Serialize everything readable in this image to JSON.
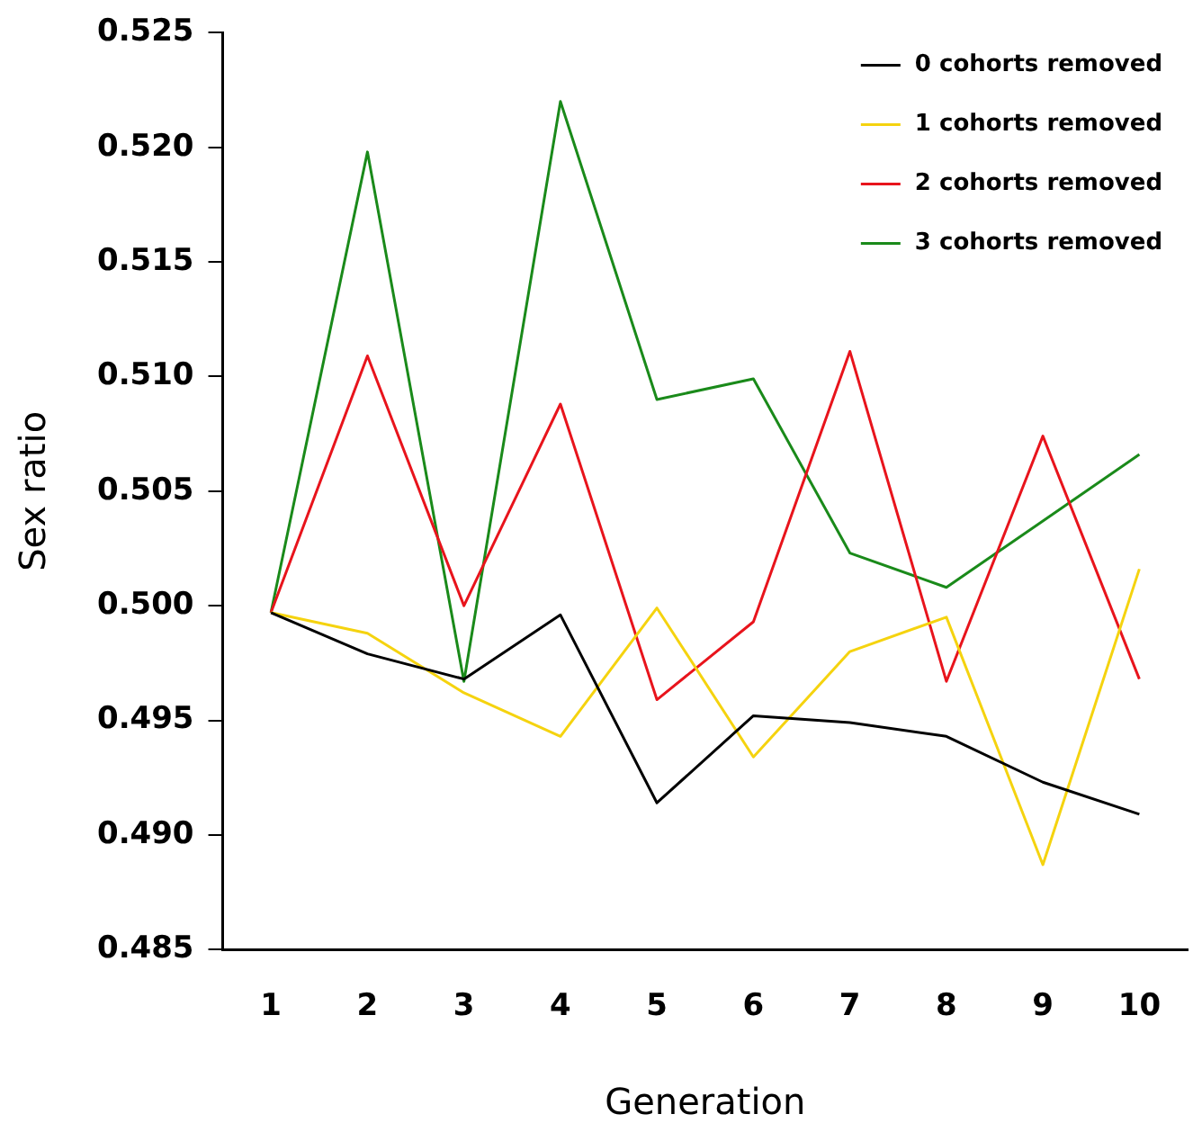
{
  "chart_data": {
    "type": "line",
    "xlabel": "Generation",
    "ylabel": "Sex ratio",
    "categories": [
      "1",
      "2",
      "3",
      "4",
      "5",
      "6",
      "7",
      "8",
      "9",
      "10"
    ],
    "series": [
      {
        "name": "0 cohorts removed",
        "color": "#000000",
        "values": [
          0.4997,
          0.4979,
          0.4968,
          0.4996,
          0.4914,
          0.4952,
          0.4949,
          0.4943,
          0.4923,
          0.4909
        ]
      },
      {
        "name": "1 cohorts removed",
        "color": "#f5d30f",
        "values": [
          0.4997,
          0.4988,
          0.4962,
          0.4943,
          0.4999,
          0.4934,
          0.498,
          0.4995,
          0.4887,
          0.5016
        ]
      },
      {
        "name": "2 cohorts removed",
        "color": "#e8141c",
        "values": [
          0.4997,
          0.5109,
          0.5,
          0.5088,
          0.4959,
          0.4993,
          0.5111,
          0.4967,
          0.5074,
          0.4968
        ]
      },
      {
        "name": "3 cohorts removed",
        "color": "#1a8a1a",
        "values": [
          0.4997,
          0.5198,
          0.4967,
          0.522,
          0.509,
          0.5099,
          0.5023,
          0.5008,
          0.5037,
          0.5066
        ]
      }
    ],
    "ylim": [
      0.485,
      0.525
    ],
    "yticks": [
      {
        "value": 0.485,
        "label": "0.485"
      },
      {
        "value": 0.49,
        "label": "0.490"
      },
      {
        "value": 0.495,
        "label": "0.495"
      },
      {
        "value": 0.5,
        "label": "0.500"
      },
      {
        "value": 0.505,
        "label": "0.505"
      },
      {
        "value": 0.51,
        "label": "0.510"
      },
      {
        "value": 0.515,
        "label": "0.515"
      },
      {
        "value": 0.52,
        "label": "0.520"
      },
      {
        "value": 0.525,
        "label": "0.525"
      }
    ],
    "grid": false,
    "legend": "top right",
    "marker": "none",
    "line_style": "solid"
  }
}
